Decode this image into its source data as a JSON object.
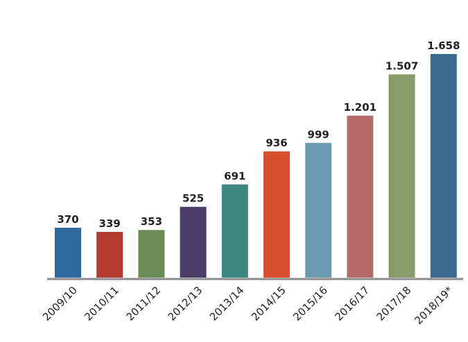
{
  "chart_data": {
    "type": "bar",
    "categories": [
      "2009/10",
      "2010/11",
      "2011/12",
      "2012/13",
      "2013/14",
      "2014/15",
      "2015/16",
      "2016/17",
      "2017/18",
      "2018/19*"
    ],
    "values": [
      370,
      339,
      353,
      525,
      691,
      936,
      999,
      1201,
      1507,
      1658
    ],
    "value_labels": [
      "370",
      "339",
      "353",
      "525",
      "691",
      "936",
      "999",
      "1.201",
      "1.507",
      "1.658"
    ],
    "colors": [
      "#2f6a9c",
      "#b23a2f",
      "#6b8a55",
      "#4b3b69",
      "#3e8880",
      "#d84f2d",
      "#6b9bb0",
      "#b76b69",
      "#8a9b6a",
      "#3b6990"
    ]
  }
}
